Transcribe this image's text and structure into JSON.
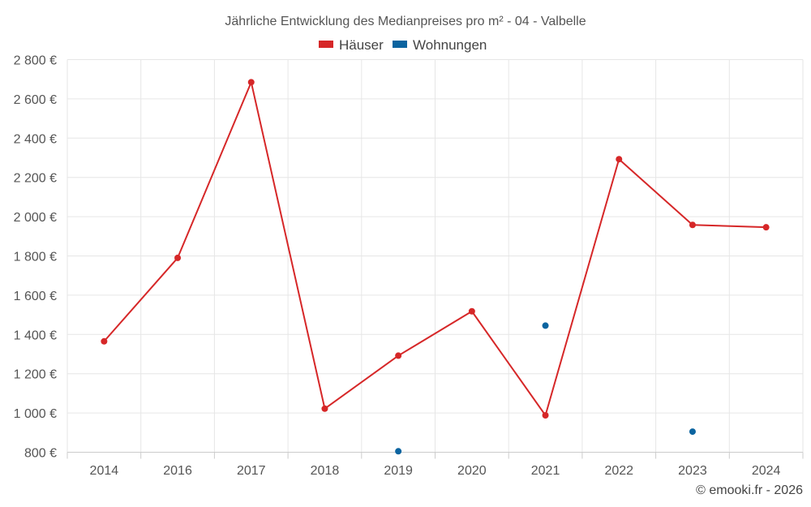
{
  "chart_data": {
    "type": "line",
    "title": "Jährliche Entwicklung des Medianpreises pro m² - 04 - Valbelle",
    "categories": [
      "2014",
      "2016",
      "2017",
      "2018",
      "2019",
      "2020",
      "2021",
      "2022",
      "2023",
      "2024"
    ],
    "series": [
      {
        "name": "Häuser",
        "color": "#d62728",
        "values": [
          1365,
          1790,
          2685,
          1022,
          1292,
          1518,
          988,
          2293,
          1958,
          1946
        ]
      },
      {
        "name": "Wohnungen",
        "color": "#0b64a0",
        "values": [
          null,
          null,
          null,
          null,
          805,
          null,
          1445,
          null,
          905,
          null
        ]
      }
    ],
    "ylim": [
      800,
      2800
    ],
    "yticks": [
      800,
      1000,
      1200,
      1400,
      1600,
      1800,
      2000,
      2200,
      2400,
      2600,
      2800
    ],
    "ytick_labels": [
      "800 €",
      "1 000 €",
      "1 200 €",
      "1 400 €",
      "1 600 €",
      "1 800 €",
      "2 000 €",
      "2 200 €",
      "2 400 €",
      "2 600 €",
      "2 800 €"
    ],
    "grid": true,
    "legend_position": "top-center",
    "credit": "© emooki.fr - 2026"
  }
}
